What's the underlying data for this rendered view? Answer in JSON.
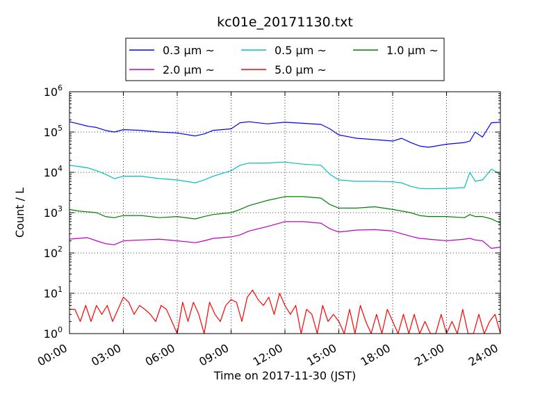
{
  "chart_data": {
    "type": "line",
    "title": "kc01e_20171130.txt",
    "xlabel": "Time on 2017-11-30 (JST)",
    "ylabel": "Count / L",
    "y_scale": "log",
    "ylim": [
      1,
      1000000
    ],
    "xlim": [
      "00:00",
      "24:00"
    ],
    "x_unit": "hours",
    "x_ticks": [
      "00:00",
      "03:00",
      "06:00",
      "09:00",
      "12:00",
      "15:00",
      "18:00",
      "21:00",
      "24:00"
    ],
    "y_ticks": [
      {
        "base": "10",
        "exp": "0"
      },
      {
        "base": "10",
        "exp": "1"
      },
      {
        "base": "10",
        "exp": "2"
      },
      {
        "base": "10",
        "exp": "3"
      },
      {
        "base": "10",
        "exp": "4"
      },
      {
        "base": "10",
        "exp": "5"
      },
      {
        "base": "10",
        "exp": "6"
      }
    ],
    "grid": true,
    "legend_position": "top",
    "series": [
      {
        "name": "0.3 μm ~",
        "color": "#0000ff",
        "x": [
          0,
          0.5,
          1,
          1.5,
          2,
          2.5,
          3,
          4,
          5,
          6,
          7,
          7.5,
          8,
          9,
          9.5,
          10,
          11,
          12,
          13,
          14,
          14.5,
          15,
          16,
          17,
          18,
          18.5,
          19,
          19.5,
          20,
          21,
          22,
          22.3,
          22.6,
          23,
          23.5,
          24
        ],
        "y": [
          180000,
          160000,
          140000,
          130000,
          110000,
          100000,
          115000,
          110000,
          100000,
          95000,
          80000,
          90000,
          110000,
          120000,
          170000,
          180000,
          160000,
          175000,
          165000,
          155000,
          120000,
          85000,
          70000,
          65000,
          60000,
          70000,
          55000,
          45000,
          42000,
          50000,
          55000,
          60000,
          100000,
          75000,
          170000,
          175000
        ]
      },
      {
        "name": "0.5 μm ~",
        "color": "#00bfbf",
        "x": [
          0,
          0.5,
          1,
          1.5,
          2,
          2.5,
          3,
          4,
          5,
          6,
          7,
          7.5,
          8,
          9,
          9.5,
          10,
          11,
          12,
          13,
          14,
          14.5,
          15,
          16,
          17,
          18,
          18.5,
          19,
          19.5,
          20,
          21,
          22,
          22.3,
          22.6,
          23,
          23.5,
          24
        ],
        "y": [
          15000,
          14000,
          13000,
          11000,
          9000,
          7000,
          8000,
          8000,
          7000,
          6500,
          5500,
          6500,
          8000,
          11000,
          15000,
          17000,
          17000,
          18000,
          16000,
          15000,
          9000,
          6500,
          6000,
          6000,
          5800,
          5500,
          4500,
          4000,
          3900,
          4000,
          4200,
          10000,
          6000,
          6500,
          12000,
          9000
        ]
      },
      {
        "name": "1.0 μm ~",
        "color": "#008000",
        "x": [
          0,
          0.5,
          1,
          1.5,
          2,
          2.5,
          3,
          4,
          5,
          6,
          7,
          7.5,
          8,
          9,
          9.5,
          10,
          11,
          12,
          13,
          14,
          14.5,
          15,
          16,
          17,
          18,
          18.5,
          19,
          19.5,
          20,
          21,
          22,
          22.3,
          22.6,
          23,
          23.5,
          24
        ],
        "y": [
          1200,
          1100,
          1050,
          1000,
          800,
          750,
          850,
          850,
          750,
          800,
          700,
          800,
          900,
          1000,
          1200,
          1500,
          2000,
          2500,
          2500,
          2300,
          1600,
          1300,
          1300,
          1400,
          1200,
          1100,
          1000,
          850,
          800,
          800,
          750,
          900,
          800,
          800,
          700,
          550
        ]
      },
      {
        "name": "2.0 μm ~",
        "color": "#bf00bf",
        "x": [
          0,
          0.5,
          1,
          1.5,
          2,
          2.5,
          3,
          4,
          5,
          6,
          7,
          7.5,
          8,
          9,
          9.5,
          10,
          11,
          12,
          13,
          14,
          14.5,
          15,
          16,
          17,
          18,
          18.5,
          19,
          19.5,
          20,
          21,
          22,
          22.3,
          22.6,
          23,
          23.5,
          24
        ],
        "y": [
          220,
          230,
          240,
          200,
          170,
          160,
          200,
          210,
          220,
          200,
          180,
          200,
          230,
          250,
          280,
          350,
          450,
          600,
          600,
          550,
          400,
          330,
          370,
          380,
          350,
          300,
          260,
          230,
          220,
          200,
          220,
          230,
          210,
          200,
          130,
          140
        ]
      },
      {
        "name": "5.0 μm ~",
        "color": "#ff0000",
        "x": [
          0,
          0.3,
          0.6,
          0.9,
          1.2,
          1.5,
          1.8,
          2.1,
          2.4,
          2.7,
          3,
          3.3,
          3.6,
          3.9,
          4.2,
          4.5,
          4.8,
          5.1,
          5.4,
          5.7,
          6,
          6.3,
          6.6,
          6.9,
          7.2,
          7.5,
          7.8,
          8.1,
          8.4,
          8.7,
          9,
          9.3,
          9.6,
          9.9,
          10.2,
          10.5,
          10.8,
          11.1,
          11.4,
          11.7,
          12,
          12.3,
          12.6,
          12.9,
          13.2,
          13.5,
          13.8,
          14.1,
          14.4,
          14.7,
          15,
          15.3,
          15.6,
          15.9,
          16.2,
          16.5,
          16.8,
          17.1,
          17.4,
          17.7,
          18,
          18.3,
          18.6,
          18.9,
          19.2,
          19.5,
          19.8,
          20.1,
          20.4,
          20.7,
          21,
          21.3,
          21.6,
          21.9,
          22.2,
          22.5,
          22.8,
          23.1,
          23.4,
          23.7,
          24
        ],
        "y": [
          4,
          4,
          2,
          5,
          2,
          5,
          3,
          5,
          2,
          4,
          8,
          6,
          3,
          5,
          4,
          3,
          2,
          5,
          4,
          2,
          1,
          6,
          2,
          6,
          3,
          1,
          6,
          3,
          2,
          5,
          7,
          6,
          2,
          8,
          12,
          7,
          5,
          8,
          3,
          10,
          5,
          3,
          5,
          1,
          4,
          3,
          1,
          5,
          2,
          3,
          2,
          1,
          4,
          1,
          5,
          2,
          1,
          3,
          1,
          4,
          2,
          1,
          3,
          1,
          3,
          1,
          2,
          1,
          1,
          3,
          1,
          2,
          1,
          4,
          1,
          1,
          3,
          1,
          2,
          3,
          1
        ]
      }
    ]
  }
}
